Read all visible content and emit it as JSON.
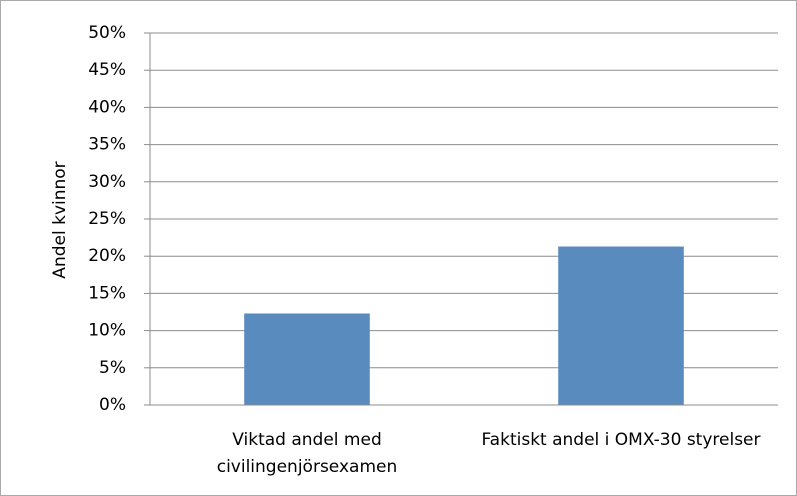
{
  "chart_data": {
    "type": "bar",
    "y_label": "Andel kvinnor",
    "categories": [
      "Viktad andel med civilingenjörsexamen",
      "Faktiskt andel i OMX-30 styrelser"
    ],
    "values": [
      12.3,
      21.3
    ],
    "color": "#5a8bbf",
    "ylim": [
      0,
      50
    ],
    "yticks": [
      {
        "value": 0,
        "label": "0%"
      },
      {
        "value": 5,
        "label": "5%"
      },
      {
        "value": 10,
        "label": "10%"
      },
      {
        "value": 15,
        "label": "15%"
      },
      {
        "value": 20,
        "label": "20%"
      },
      {
        "value": 25,
        "label": "25%"
      },
      {
        "value": 30,
        "label": "30%"
      },
      {
        "value": 35,
        "label": "35%"
      },
      {
        "value": 40,
        "label": "40%"
      },
      {
        "value": 45,
        "label": "45%"
      },
      {
        "value": 50,
        "label": "50%"
      }
    ],
    "grid": true
  }
}
